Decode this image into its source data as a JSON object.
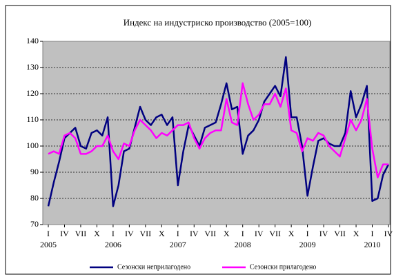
{
  "chart_data": {
    "type": "line",
    "title": "Индекс на индустриско производство (2005=100)",
    "categories": [
      "I",
      null,
      null,
      "IV",
      null,
      null,
      "VII",
      null,
      null,
      "X",
      null,
      null,
      "I",
      null,
      null,
      "IV",
      null,
      null,
      "VII",
      null,
      null,
      "X",
      null,
      null,
      "I",
      null,
      null,
      "IV",
      null,
      null,
      "VII",
      null,
      null,
      "X",
      null,
      null,
      "I",
      null,
      null,
      "IV",
      null,
      null,
      "VII",
      null,
      null,
      "X",
      null,
      null,
      "I",
      null,
      null,
      "IV",
      null,
      null,
      "VII",
      null,
      null,
      "X",
      null,
      null,
      "I",
      null,
      null,
      "IV"
    ],
    "years": [
      "2005",
      "2006",
      "2007",
      "2008",
      "2009",
      "2010"
    ],
    "series": [
      {
        "name": "Сезонски неприлагодено",
        "color": "#000080",
        "values": [
          77,
          86,
          94,
          103,
          105,
          107,
          100,
          99,
          105,
          106,
          104,
          111,
          77,
          85,
          98,
          99,
          107,
          115,
          110,
          108,
          111,
          112,
          108,
          111,
          85,
          98,
          108,
          104,
          100,
          107,
          108,
          109,
          116,
          124,
          114,
          115,
          97,
          104,
          106,
          110,
          117,
          120,
          123,
          119,
          134,
          111,
          111,
          100,
          81,
          92,
          102,
          103,
          101,
          100,
          100,
          105,
          121,
          111,
          116,
          123,
          79,
          80,
          89,
          93
        ]
      },
      {
        "name": "Сезонски прилагодено",
        "color": "#ff00ff",
        "values": [
          97,
          98,
          97,
          104,
          105,
          103,
          97,
          97,
          98,
          100,
          100,
          104,
          98,
          95,
          101,
          100,
          106,
          110,
          108,
          106,
          103,
          105,
          104,
          106,
          108,
          108,
          109,
          103,
          99,
          103,
          105,
          106,
          106,
          118,
          109,
          108,
          124,
          116,
          110,
          112,
          116,
          116,
          120,
          115,
          122,
          106,
          105,
          98,
          103,
          102,
          105,
          104,
          100,
          98,
          96,
          103,
          110,
          106,
          110,
          118,
          99,
          88,
          93,
          93
        ]
      }
    ],
    "ylim": [
      70,
      140
    ],
    "yticks": [
      70,
      80,
      90,
      100,
      110,
      120,
      130,
      140
    ],
    "grid": true
  }
}
